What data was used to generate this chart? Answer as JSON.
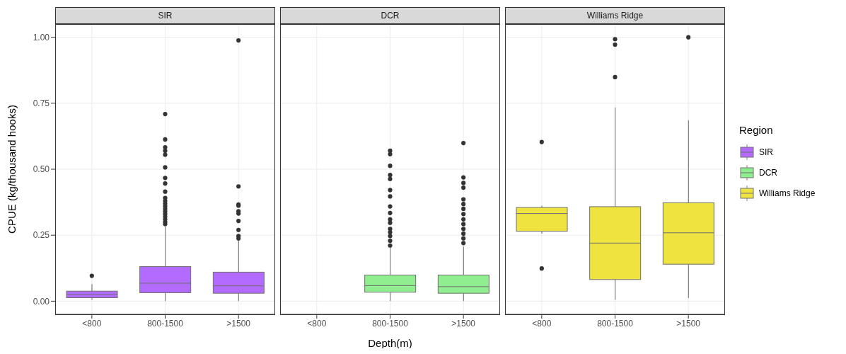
{
  "chart_data": [
    {
      "type": "box",
      "title": "SIR",
      "ylabel": "CPUE (kg/thousand hooks)",
      "categories": [
        "<800",
        "800-1500",
        ">1500"
      ],
      "ylim": [
        -0.05,
        1.05
      ],
      "yticks": [
        {
          "value": 0,
          "label": "0.00"
        },
        {
          "value": 0.25,
          "label": "0.25"
        },
        {
          "value": 0.5,
          "label": "0.50"
        },
        {
          "value": 0.75,
          "label": "0.75"
        },
        {
          "value": 1,
          "label": "1.00"
        }
      ],
      "grid": true,
      "series": [
        {
          "name": "SIR",
          "color": "#b36bff",
          "boxes": [
            {
              "low": 0.005,
              "q1": 0.013,
              "median": 0.026,
              "q3": 0.038,
              "high": 0.065,
              "outliers": [
                0.096
              ]
            },
            {
              "low": 0.0,
              "q1": 0.032,
              "median": 0.068,
              "q3": 0.131,
              "high": 0.283,
              "outliers": [
                0.709,
                0.613,
                0.583,
                0.57,
                0.555,
                0.507,
                0.467,
                0.446,
                0.415,
                0.391,
                0.38,
                0.37,
                0.36,
                0.35,
                0.34,
                0.33,
                0.32,
                0.31,
                0.3,
                0.292
              ]
            },
            {
              "low": 0.0,
              "q1": 0.03,
              "median": 0.058,
              "q3": 0.11,
              "high": 0.231,
              "outliers": [
                0.988,
                0.435,
                0.366,
                0.362,
                0.341,
                0.332,
                0.304,
                0.27,
                0.247,
                0.238
              ]
            }
          ]
        }
      ]
    },
    {
      "type": "box",
      "title": "DCR",
      "xlabel": "Depth(m)",
      "categories": [
        "<800",
        "800-1500",
        ">1500"
      ],
      "ylim": [
        -0.05,
        1.05
      ],
      "yticks": [
        0,
        0.25,
        0.5,
        0.75,
        1
      ],
      "grid": true,
      "tick_labels": "x",
      "series": [
        {
          "name": "DCR",
          "color": "#90ee90",
          "boxes": [
            null,
            {
              "low": 0.0,
              "q1": 0.034,
              "median": 0.059,
              "q3": 0.099,
              "high": 0.203,
              "outliers": [
                0.57,
                0.557,
                0.513,
                0.478,
                0.463,
                0.421,
                0.397,
                0.359,
                0.334,
                0.31,
                0.297,
                0.274,
                0.261,
                0.247,
                0.229,
                0.211
              ]
            },
            {
              "low": 0.0,
              "q1": 0.03,
              "median": 0.055,
              "q3": 0.099,
              "high": 0.207,
              "outliers": [
                0.599,
                0.469,
                0.448,
                0.43,
                0.386,
                0.368,
                0.35,
                0.33,
                0.31,
                0.292,
                0.274,
                0.256,
                0.238,
                0.22
              ]
            }
          ]
        }
      ]
    },
    {
      "type": "box",
      "title": "Williams Ridge",
      "categories": [
        "<800",
        "800-1500",
        ">1500"
      ],
      "ylim": [
        -0.05,
        1.05
      ],
      "yticks": [
        0,
        0.25,
        0.5,
        0.75,
        1
      ],
      "grid": true,
      "tick_labels": "x",
      "legend": "right",
      "legend_title": "Region",
      "series": [
        {
          "name": "Williams Ridge",
          "color": "#efe43f",
          "boxes": [
            {
              "low": 0.256,
              "q1": 0.265,
              "median": 0.332,
              "q3": 0.355,
              "high": 0.362,
              "outliers": [
                0.603,
                0.124
              ]
            },
            {
              "low": 0.005,
              "q1": 0.082,
              "median": 0.22,
              "q3": 0.358,
              "high": 0.734,
              "outliers": [
                0.993,
                0.972,
                0.849
              ]
            },
            {
              "low": 0.012,
              "q1": 0.14,
              "median": 0.259,
              "q3": 0.373,
              "high": 0.686,
              "outliers": [
                1.0
              ]
            }
          ]
        }
      ]
    }
  ]
}
